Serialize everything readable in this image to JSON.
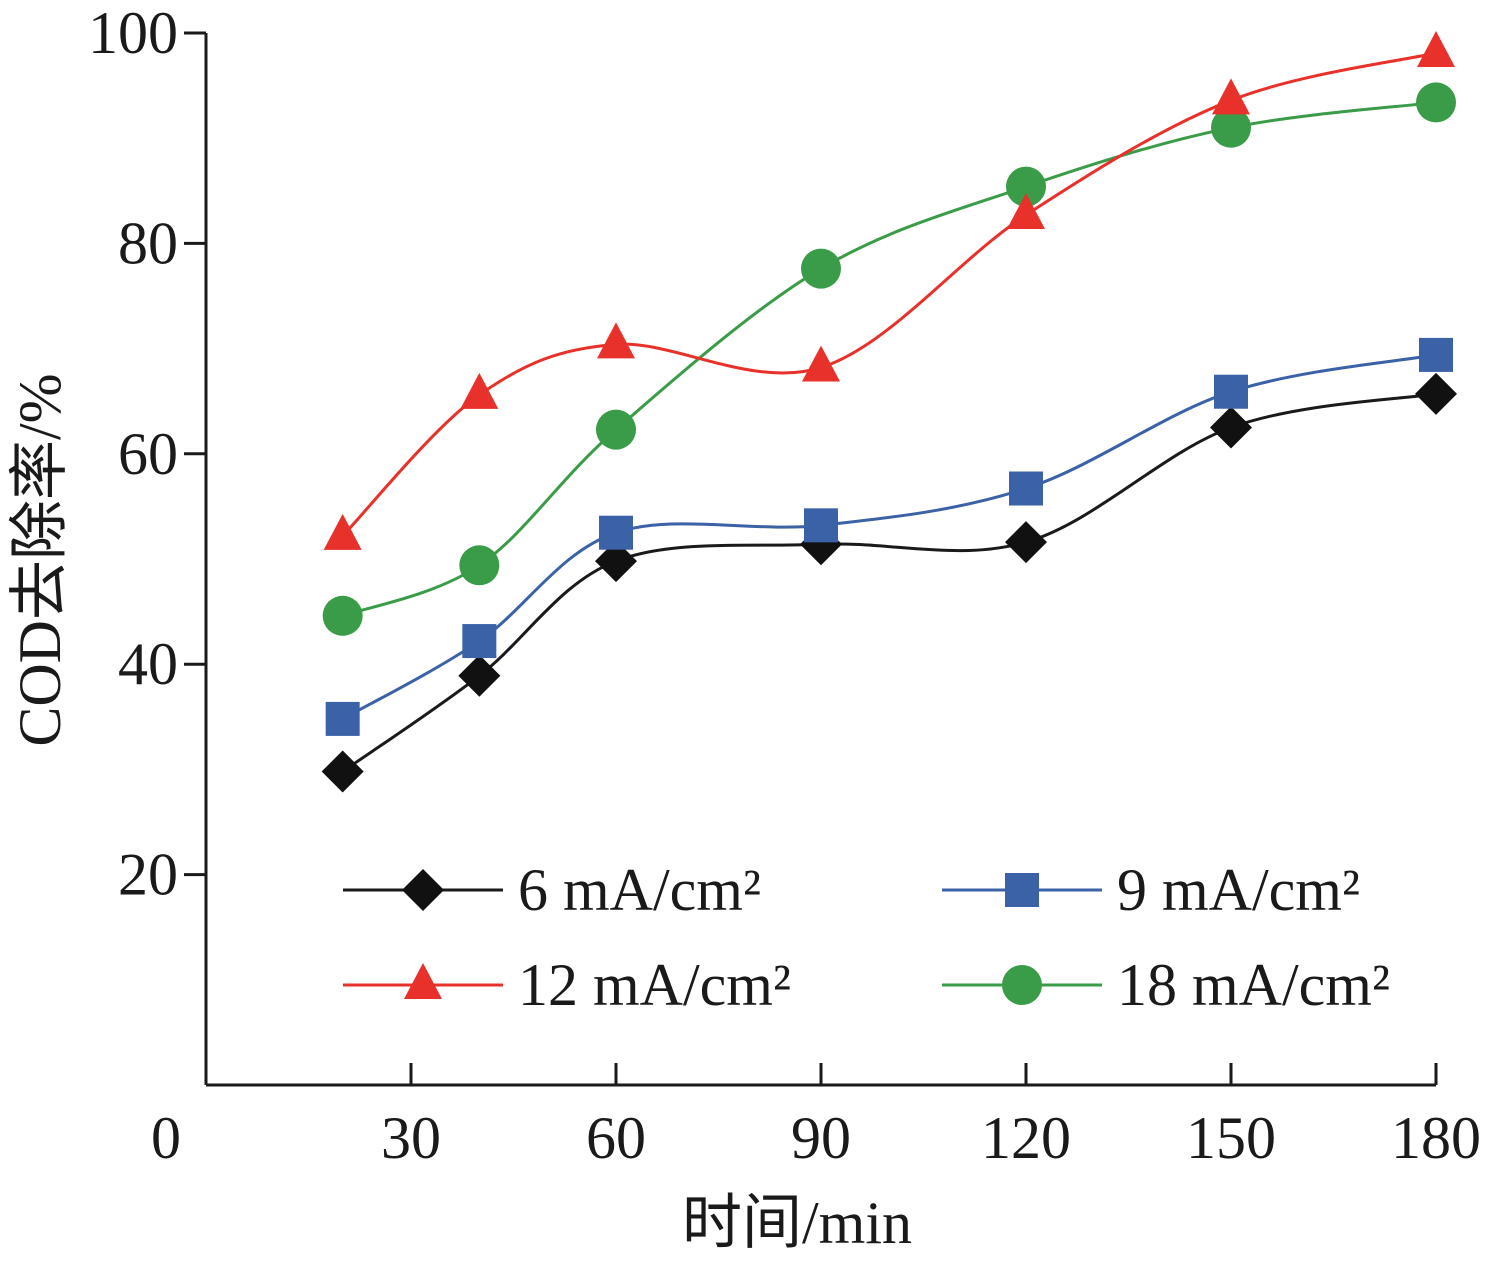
{
  "chart_data": {
    "type": "line",
    "title": "",
    "xlabel": "时间/min",
    "ylabel": "COD去除率/%",
    "xlim": [
      0,
      180
    ],
    "ylim": [
      0,
      100
    ],
    "x_ticks": [
      0,
      30,
      60,
      90,
      120,
      150,
      180
    ],
    "y_ticks": [
      20,
      40,
      60,
      80,
      100
    ],
    "x_tick_labels": [
      "0",
      "30",
      "60",
      "90",
      "120",
      "150",
      "180"
    ],
    "y_tick_labels": [
      "20",
      "40",
      "60",
      "80",
      "100"
    ],
    "grid": false,
    "legend_position": "bottom-inside",
    "x": [
      20,
      40,
      60,
      90,
      120,
      150,
      180
    ],
    "series": [
      {
        "name": "6 mA/cm²",
        "color": "#1a1a1a",
        "marker": "diamond",
        "values": [
          29.8,
          38.9,
          49.8,
          51.4,
          51.6,
          62.5,
          65.7
        ]
      },
      {
        "name": "9 mA/cm²",
        "color": "#3b61a6",
        "marker": "square",
        "values": [
          34.8,
          42.2,
          52.5,
          53.2,
          56.7,
          65.9,
          69.4
        ]
      },
      {
        "name": "12 mA/cm²",
        "color": "#e8312a",
        "marker": "triangle",
        "values": [
          52.2,
          65.6,
          70.4,
          68.2,
          82.7,
          93.6,
          98.1
        ]
      },
      {
        "name": "18 mA/cm²",
        "color": "#3a9b48",
        "marker": "circle",
        "values": [
          44.6,
          49.4,
          62.3,
          77.6,
          85.4,
          91.0,
          93.4
        ]
      }
    ]
  }
}
